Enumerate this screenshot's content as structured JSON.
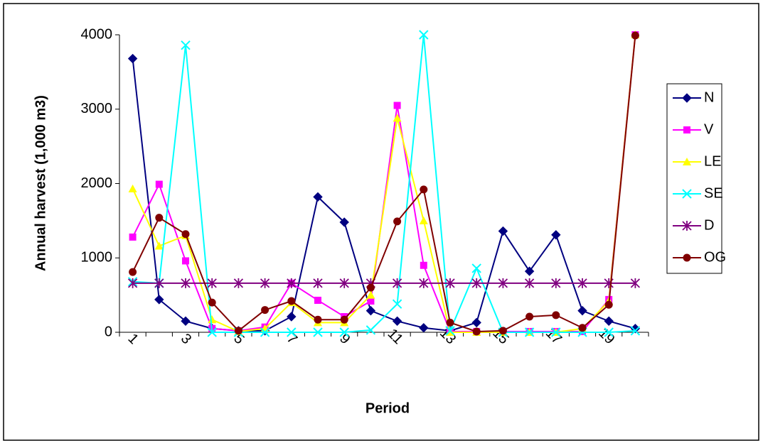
{
  "chart_data": {
    "type": "line",
    "x_label": "Period",
    "y_label": "Annual harvest (1,000 m3)",
    "categories": [
      "1",
      null,
      "3",
      null,
      "5",
      null,
      "7",
      null,
      "9",
      null,
      "11",
      null,
      "13",
      null,
      "15",
      null,
      "17",
      null,
      "19",
      null
    ],
    "ylim": [
      0,
      4000
    ],
    "yticks": [
      0,
      1000,
      2000,
      3000,
      4000
    ],
    "grid": false,
    "legend": "right",
    "series": [
      {
        "name": "N",
        "color": "#000080",
        "marker": "diamond",
        "values": [
          3680,
          440,
          150,
          50,
          20,
          20,
          210,
          1820,
          1480,
          290,
          150,
          60,
          20,
          130,
          1360,
          820,
          1310,
          290,
          150,
          50
        ]
      },
      {
        "name": "V",
        "color": "#FF00FF",
        "marker": "square",
        "values": [
          1280,
          1990,
          960,
          50,
          20,
          70,
          660,
          430,
          210,
          420,
          3050,
          900,
          10,
          10,
          10,
          10,
          10,
          10,
          440,
          4000
        ]
      },
      {
        "name": "LE",
        "color": "#FFFF00",
        "marker": "triangle",
        "values": [
          1930,
          1160,
          1300,
          170,
          10,
          50,
          400,
          130,
          130,
          500,
          2880,
          1500,
          0,
          0,
          0,
          0,
          0,
          50,
          420,
          4000
        ]
      },
      {
        "name": "SE",
        "color": "#00FFFF",
        "marker": "x",
        "values": [
          680,
          660,
          3860,
          0,
          0,
          0,
          0,
          0,
          0,
          30,
          380,
          4000,
          20,
          860,
          0,
          0,
          0,
          0,
          0,
          20
        ]
      },
      {
        "name": "D",
        "color": "#800080",
        "marker": "star",
        "values": [
          660,
          660,
          660,
          660,
          660,
          660,
          660,
          660,
          660,
          660,
          660,
          660,
          660,
          660,
          660,
          660,
          660,
          660,
          660,
          660
        ]
      },
      {
        "name": "OG",
        "color": "#800000",
        "marker": "circle",
        "values": [
          810,
          1540,
          1320,
          400,
          20,
          300,
          420,
          170,
          170,
          600,
          1490,
          1920,
          130,
          10,
          20,
          210,
          230,
          60,
          370,
          3990
        ]
      }
    ]
  }
}
